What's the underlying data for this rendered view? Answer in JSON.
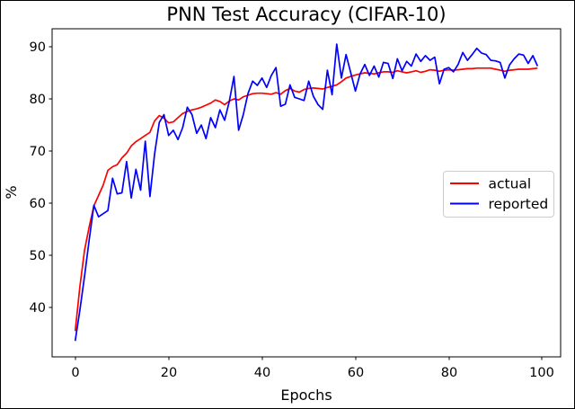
{
  "figure": {
    "background": "#ffffff",
    "border_color": "#000000",
    "spine_color": "#000000"
  },
  "chart_data": {
    "type": "line",
    "title": "PNN Test Accuracy (CIFAR-10)",
    "xlabel": "Epochs",
    "ylabel": "%",
    "xlim": [
      -4.95,
      103.95
    ],
    "ylim": [
      30.55,
      93.45
    ],
    "x_ticks": [
      0,
      20,
      40,
      60,
      80,
      100
    ],
    "y_ticks": [
      40,
      50,
      60,
      70,
      80,
      90
    ],
    "grid": false,
    "legend": {
      "position": "center-right",
      "border_color": "#cccccc",
      "entries": [
        {
          "label": "actual",
          "color": "#ff0000"
        },
        {
          "label": "reported",
          "color": "#0000ff"
        }
      ]
    },
    "x": [
      0,
      1,
      2,
      3,
      4,
      5,
      6,
      7,
      8,
      9,
      10,
      11,
      12,
      13,
      14,
      15,
      16,
      17,
      18,
      19,
      20,
      21,
      22,
      23,
      24,
      25,
      26,
      27,
      28,
      29,
      30,
      31,
      32,
      33,
      34,
      35,
      36,
      37,
      38,
      39,
      40,
      41,
      42,
      43,
      44,
      45,
      46,
      47,
      48,
      49,
      50,
      51,
      52,
      53,
      54,
      55,
      56,
      57,
      58,
      59,
      60,
      61,
      62,
      63,
      64,
      65,
      66,
      67,
      68,
      69,
      70,
      71,
      72,
      73,
      74,
      75,
      76,
      77,
      78,
      79,
      80,
      81,
      82,
      83,
      84,
      85,
      86,
      87,
      88,
      89,
      90,
      91,
      92,
      93,
      94,
      95,
      96,
      97,
      98,
      99
    ],
    "series": [
      {
        "name": "actual",
        "color": "#ff0000",
        "values": [
          35.5,
          44.0,
          51.0,
          55.5,
          59.5,
          61.5,
          63.5,
          66.3,
          67.0,
          67.4,
          68.7,
          69.6,
          71.0,
          71.8,
          72.4,
          73.0,
          73.6,
          75.8,
          76.8,
          76.3,
          75.4,
          75.6,
          76.4,
          77.2,
          77.6,
          77.9,
          78.1,
          78.4,
          78.8,
          79.2,
          79.8,
          79.5,
          78.9,
          79.6,
          80.0,
          79.8,
          80.4,
          80.7,
          81.0,
          81.1,
          81.1,
          81.0,
          80.9,
          81.2,
          80.9,
          81.6,
          82.0,
          81.5,
          81.3,
          81.8,
          82.0,
          82.1,
          82.0,
          81.9,
          82.2,
          82.4,
          82.7,
          83.3,
          84.0,
          84.3,
          84.6,
          84.8,
          85.0,
          84.9,
          84.8,
          85.0,
          85.2,
          85.2,
          85.1,
          85.4,
          85.2,
          85.0,
          85.2,
          85.4,
          85.1,
          85.3,
          85.6,
          85.5,
          85.3,
          85.5,
          85.6,
          85.5,
          85.6,
          85.7,
          85.8,
          85.8,
          85.9,
          85.9,
          85.9,
          85.9,
          85.7,
          85.5,
          85.3,
          85.5,
          85.6,
          85.7,
          85.7,
          85.7,
          85.8,
          85.9
        ]
      },
      {
        "name": "reported",
        "color": "#0000ff",
        "values": [
          33.6,
          39.5,
          46.0,
          53.0,
          59.6,
          57.4,
          58.0,
          58.6,
          64.8,
          61.8,
          62.0,
          68.0,
          61.0,
          66.5,
          62.5,
          71.9,
          61.3,
          69.5,
          75.5,
          77.0,
          73.0,
          74.0,
          72.2,
          74.5,
          78.4,
          77.0,
          73.4,
          75.0,
          72.4,
          76.4,
          74.5,
          77.9,
          75.9,
          79.5,
          84.3,
          74.0,
          77.0,
          81.0,
          83.4,
          82.6,
          84.0,
          82.2,
          84.5,
          86.0,
          78.6,
          79.0,
          82.7,
          80.3,
          80.0,
          79.7,
          83.4,
          80.5,
          78.9,
          78.0,
          85.5,
          80.8,
          90.5,
          84.0,
          88.5,
          85.0,
          81.5,
          84.8,
          86.6,
          84.5,
          86.3,
          84.2,
          87.0,
          86.8,
          83.9,
          87.7,
          85.4,
          87.2,
          86.3,
          88.6,
          87.2,
          88.3,
          87.4,
          88.0,
          82.9,
          85.7,
          86.0,
          85.2,
          86.6,
          88.9,
          87.4,
          88.5,
          89.7,
          88.8,
          88.5,
          87.4,
          87.3,
          87.0,
          84.0,
          86.5,
          87.7,
          88.6,
          88.4,
          86.8,
          88.3,
          86.3
        ]
      }
    ]
  }
}
